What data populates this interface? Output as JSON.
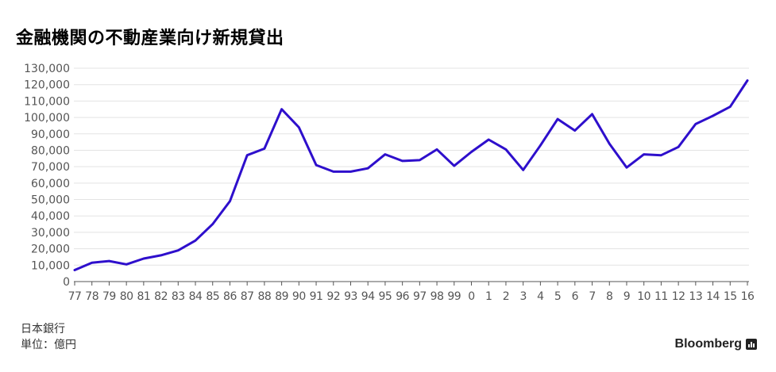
{
  "title": "金融機関の不動産業向け新規貸出",
  "source": "日本銀行",
  "unit": "単位：億円",
  "brand": "Bloomberg",
  "brand_icon": "bloomberg-bars-icon",
  "colors": {
    "line": "#2e0fcc",
    "grid": "#e3e3e3",
    "axis": "#555555",
    "tick_text": "#555555"
  },
  "chart_data": {
    "type": "line",
    "title": "金融機関の不動産業向け新規貸出",
    "xlabel": "",
    "ylabel": "",
    "ylim": [
      0,
      130000
    ],
    "yticks": [
      0,
      10000,
      20000,
      30000,
      40000,
      50000,
      60000,
      70000,
      80000,
      90000,
      100000,
      110000,
      120000,
      130000
    ],
    "ytick_labels": [
      "0",
      "10,000",
      "20,000",
      "30,000",
      "40,000",
      "50,000",
      "60,000",
      "70,000",
      "80,000",
      "90,000",
      "100,000",
      "110,000",
      "120,000",
      "130,000"
    ],
    "grid": true,
    "x": [
      "77",
      "78",
      "79",
      "80",
      "81",
      "82",
      "83",
      "84",
      "85",
      "86",
      "87",
      "88",
      "89",
      "90",
      "91",
      "92",
      "93",
      "94",
      "95",
      "96",
      "97",
      "98",
      "99",
      "0",
      "1",
      "2",
      "3",
      "4",
      "5",
      "6",
      "7",
      "8",
      "9",
      "10",
      "11",
      "12",
      "13",
      "14",
      "15",
      "16"
    ],
    "series": [
      {
        "values": [
          7000,
          11500,
          12500,
          10500,
          14000,
          16000,
          19000,
          25000,
          35000,
          49000,
          77000,
          81000,
          105000,
          94000,
          71000,
          67000,
          67000,
          69000,
          77500,
          73500,
          74000,
          80500,
          70500,
          79000,
          86500,
          80500,
          68000,
          83000,
          99000,
          92000,
          102000,
          84000,
          69500,
          77500,
          77000,
          82000,
          96000,
          101000,
          106500,
          122500
        ]
      }
    ]
  }
}
